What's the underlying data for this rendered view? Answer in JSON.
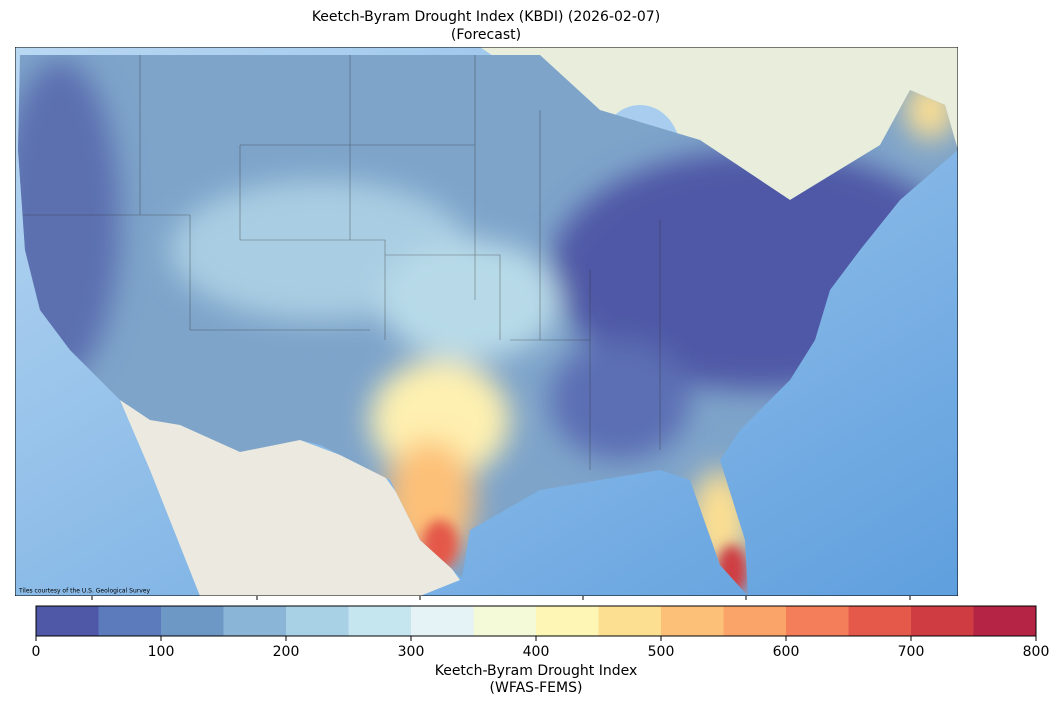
{
  "title": "Keetch-Byram Drought Index (KBDI) (2026-02-07)",
  "subtitle": "(Forecast)",
  "attribution": "Tiles courtesy of the U.S. Geological Survey",
  "colorbar": {
    "label": "Keetch-Byram Drought Index",
    "label_line2": "(WFAS-FEMS)",
    "lim": [
      0,
      800
    ],
    "boundaries": [
      0,
      50,
      100,
      150,
      200,
      250,
      300,
      350,
      400,
      450,
      500,
      550,
      600,
      650,
      700,
      750,
      800
    ],
    "colors": [
      "#4f58a6",
      "#5b7bbd",
      "#6d97c5",
      "#8ab5d6",
      "#a9d1e5",
      "#c5e5ef",
      "#e5f3f7",
      "#f4fad8",
      "#fef6b5",
      "#fddf92",
      "#fdc078",
      "#fba46a",
      "#f47d5a",
      "#e4594a",
      "#cf3d42",
      "#b52444"
    ],
    "ticks": [
      0,
      100,
      200,
      300,
      400,
      500,
      600,
      700,
      800
    ]
  }
}
